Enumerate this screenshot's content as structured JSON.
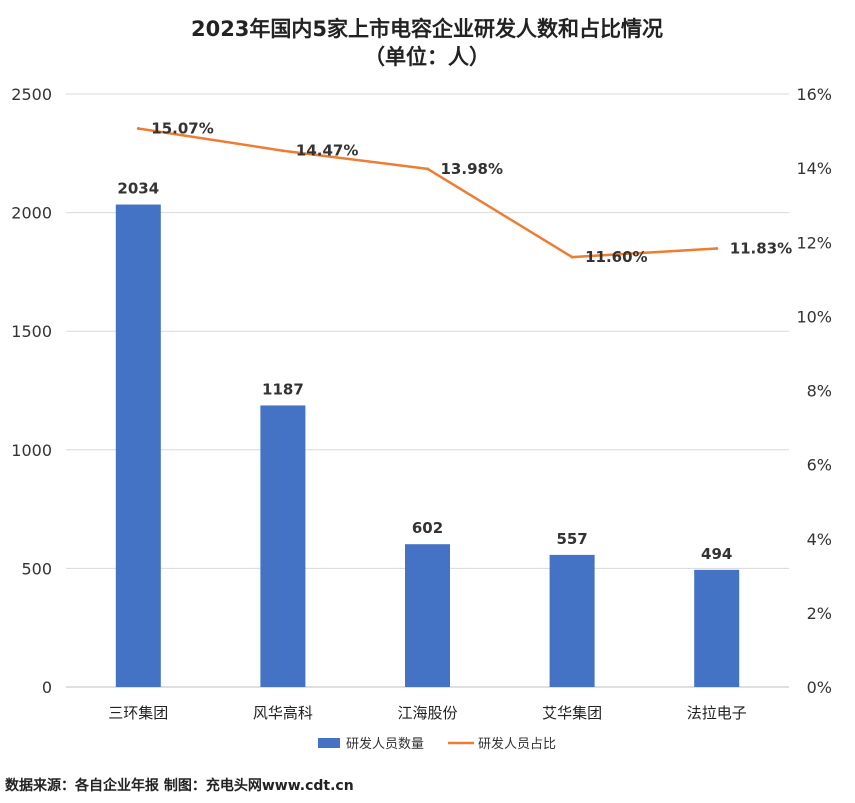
{
  "chart_data": {
    "type": "bar",
    "title": "2023年国内5家上市电容企业研发人数和占比情况",
    "subtitle": "（单位：人）",
    "categories": [
      "三环集团",
      "风华高科",
      "江海股份",
      "艾华集团",
      "法拉电子"
    ],
    "series": [
      {
        "name": "研发人员数量",
        "type": "bar",
        "axis": "left",
        "values": [
          2034,
          1187,
          602,
          557,
          494
        ],
        "labels": [
          "2034",
          "1187",
          "602",
          "557",
          "494"
        ],
        "color": "#4472C4"
      },
      {
        "name": "研发人员占比",
        "type": "line",
        "axis": "right",
        "values": [
          15.07,
          14.47,
          13.98,
          11.6,
          11.83
        ],
        "labels": [
          "15.07%",
          "14.47%",
          "13.98%",
          "11.60%",
          "11.83%"
        ],
        "color": "#ED7D31"
      }
    ],
    "y_left": {
      "range": [
        0,
        2500
      ],
      "ticks": [
        "0",
        "500",
        "1000",
        "1500",
        "2000",
        "2500"
      ]
    },
    "y_right": {
      "range": [
        0,
        16
      ],
      "ticks": [
        "0%",
        "2%",
        "4%",
        "6%",
        "8%",
        "10%",
        "12%",
        "14%",
        "16%"
      ]
    },
    "grid": true,
    "legend_position": "bottom"
  },
  "source_note": "数据来源：各自企业年报  制图：充电头网www.cdt.cn"
}
